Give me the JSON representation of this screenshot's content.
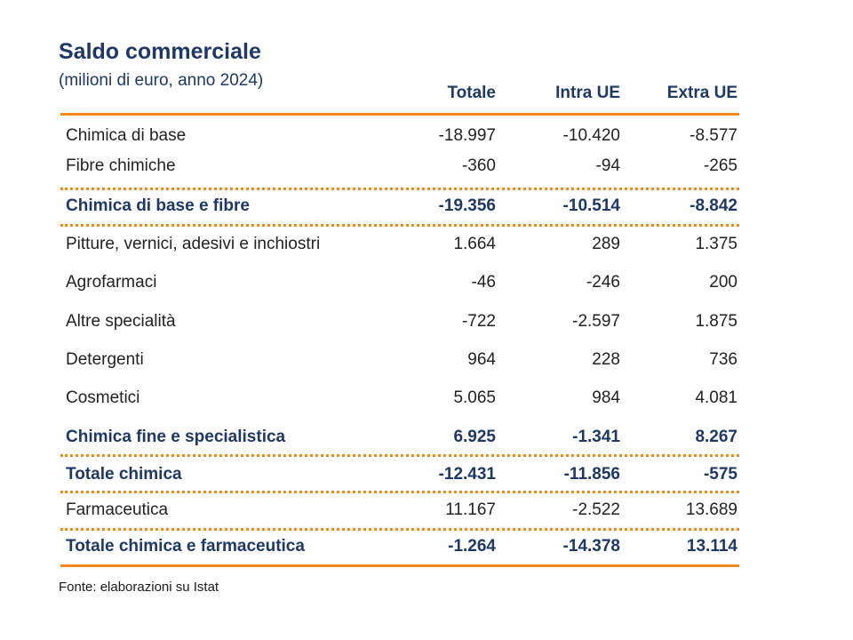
{
  "title": "Saldo commerciale",
  "subtitle": "(milioni di euro, anno 2024)",
  "columns": [
    "Totale",
    "Intra UE",
    "Extra UE"
  ],
  "rows": [
    {
      "label": "Chimica di base",
      "values": [
        "-18.997",
        "-10.420",
        "-8.577"
      ],
      "bold": false
    },
    {
      "label": "Fibre chimiche",
      "values": [
        "-360",
        "-94",
        "-265"
      ],
      "bold": false
    },
    {
      "label": "Chimica di base e fibre",
      "values": [
        "-19.356",
        "-10.514",
        "-8.842"
      ],
      "bold": true
    },
    {
      "label": "Pitture, vernici, adesivi e inchiostri",
      "values": [
        "1.664",
        "289",
        "1.375"
      ],
      "bold": false
    },
    {
      "label": "Agrofarmaci",
      "values": [
        "-46",
        "-246",
        "200"
      ],
      "bold": false
    },
    {
      "label": "Altre specialità",
      "values": [
        "-722",
        "-2.597",
        "1.875"
      ],
      "bold": false
    },
    {
      "label": "Detergenti",
      "values": [
        "964",
        "228",
        "736"
      ],
      "bold": false
    },
    {
      "label": "Cosmetici",
      "values": [
        "5.065",
        "984",
        "4.081"
      ],
      "bold": false
    },
    {
      "label": "Chimica fine e specialistica",
      "values": [
        "6.925",
        "-1.341",
        "8.267"
      ],
      "bold": true
    },
    {
      "label": "Totale chimica",
      "values": [
        "-12.431",
        "-11.856",
        "-575"
      ],
      "bold": true
    },
    {
      "label": "Farmaceutica",
      "values": [
        "11.167",
        "-2.522",
        "13.689"
      ],
      "bold": false
    },
    {
      "label": "Totale chimica e farmaceutica",
      "values": [
        "-1.264",
        "-14.378",
        "13.114"
      ],
      "bold": true
    }
  ],
  "source": "Fonte: elaborazioni su Istat",
  "colors": {
    "accent": "#ef8a1e",
    "heading": "#1f3864"
  }
}
